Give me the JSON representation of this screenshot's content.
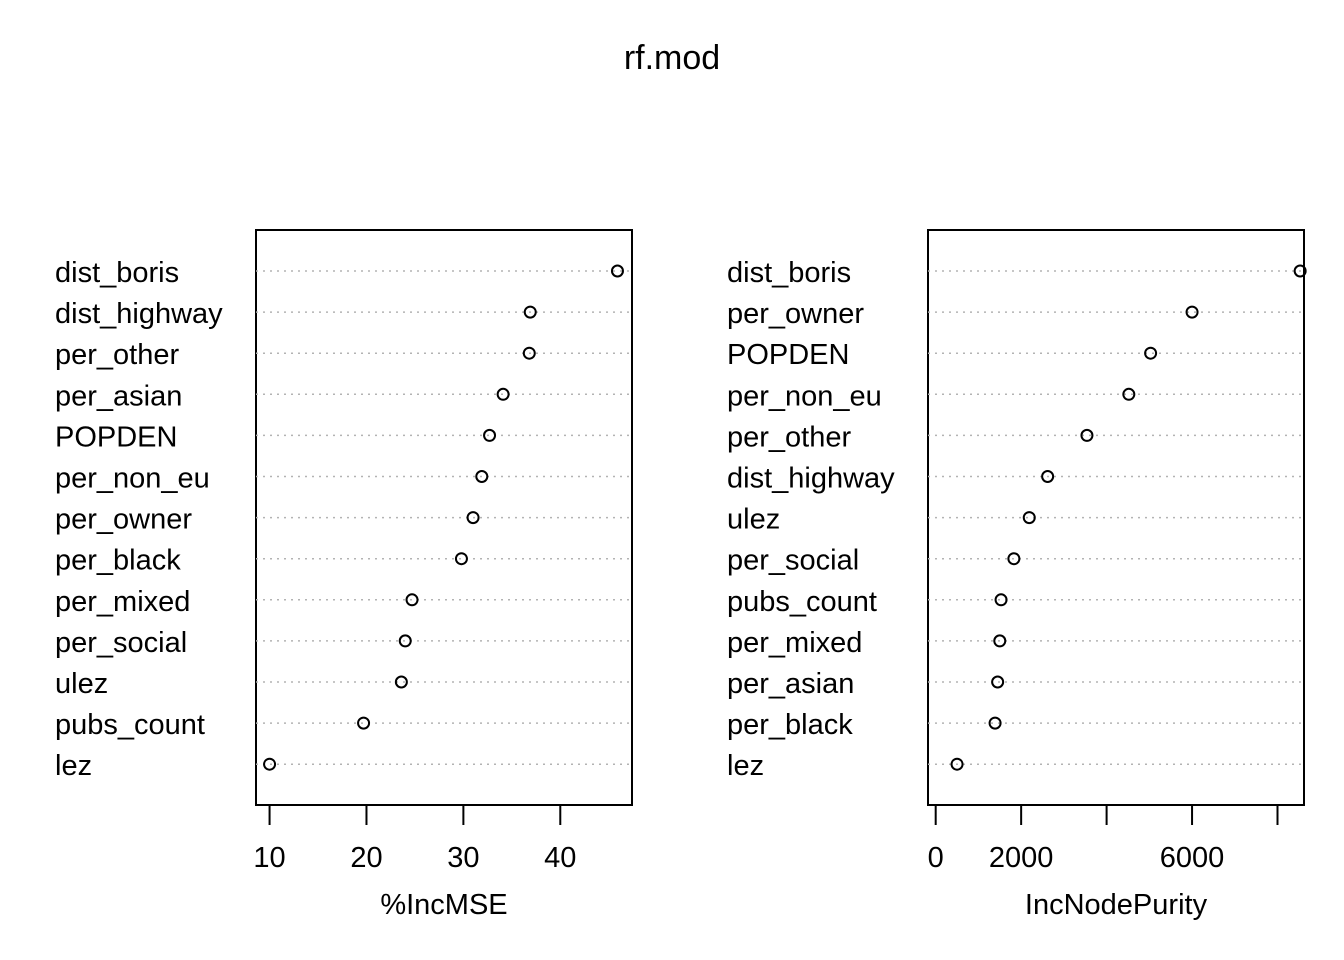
{
  "title": "rf.mod",
  "chart_data": [
    {
      "type": "scatter",
      "subtype": "dotchart",
      "xlabel": "%IncMSE",
      "ylabel": "",
      "xlim": [
        8.6,
        47.4
      ],
      "xticks": [
        10,
        20,
        30,
        40
      ],
      "xtick_labels": [
        "10",
        "20",
        "30",
        "40"
      ],
      "grid": "dotted horizontal",
      "categories": [
        "dist_boris",
        "dist_highway",
        "per_other",
        "per_asian",
        "POPDEN",
        "per_non_eu",
        "per_owner",
        "per_black",
        "per_mixed",
        "per_social",
        "ulez",
        "pubs_count",
        "lez"
      ],
      "values": [
        45.9,
        36.9,
        36.8,
        34.1,
        32.7,
        31.9,
        31.0,
        29.8,
        24.7,
        24.0,
        23.6,
        19.7,
        10.0
      ]
    },
    {
      "type": "scatter",
      "subtype": "dotchart",
      "xlabel": "IncNodePurity",
      "ylabel": "",
      "xlim": [
        -180,
        8620
      ],
      "xticks": [
        0,
        2000,
        4000,
        6000,
        8000
      ],
      "xtick_labels": [
        "0",
        "2000",
        "",
        "6000",
        ""
      ],
      "grid": "dotted horizontal",
      "categories": [
        "dist_boris",
        "per_owner",
        "POPDEN",
        "per_non_eu",
        "per_other",
        "dist_highway",
        "ulez",
        "per_social",
        "pubs_count",
        "per_mixed",
        "per_asian",
        "per_black",
        "lez"
      ],
      "values": [
        8530,
        6000,
        5030,
        4520,
        3540,
        2620,
        2190,
        1830,
        1530,
        1500,
        1450,
        1390,
        500
      ]
    }
  ]
}
